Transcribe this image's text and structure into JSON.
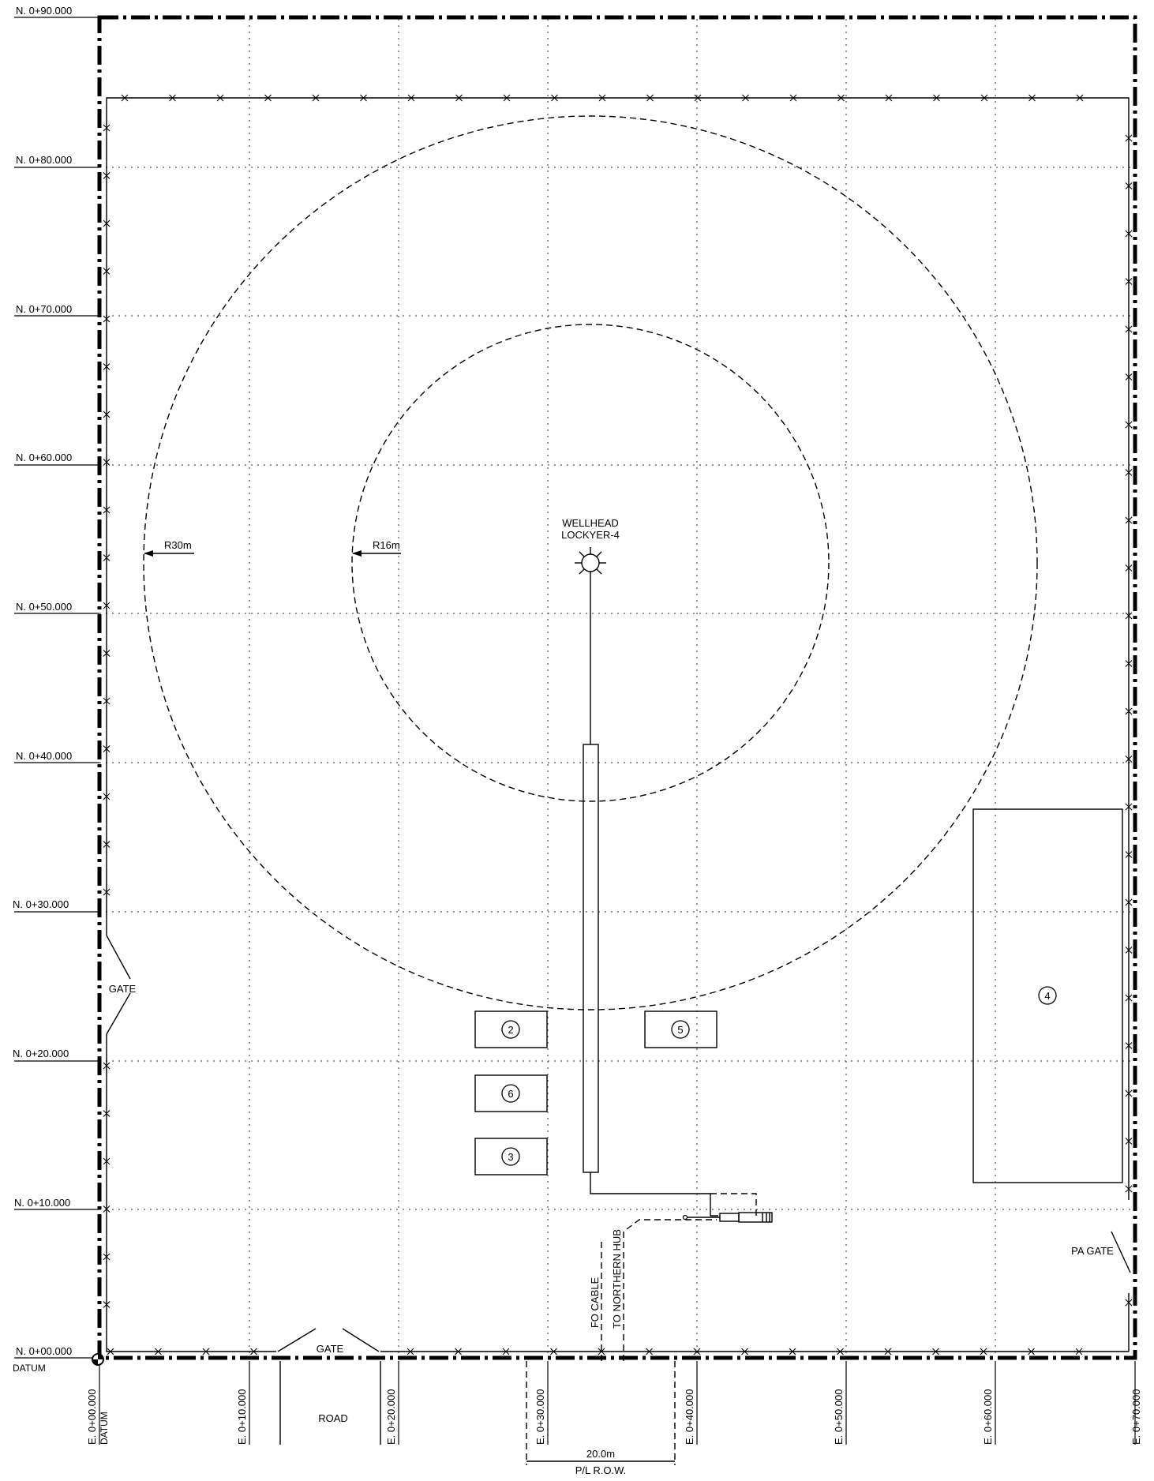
{
  "northings": [
    "N. 0+00.000",
    "N. 0+10.000",
    "N. 0+20.000",
    "N. 0+30.000",
    "N. 0+40.000",
    "N. 0+50.000",
    "N. 0+60.000",
    "N. 0+70.000",
    "N. 0+80.000",
    "N. 0+90.000"
  ],
  "eastings": [
    "E. 0+00.000",
    "E. 0+10.000",
    "E. 0+20.000",
    "E. 0+30.000",
    "E. 0+40.000",
    "E. 0+50.000",
    "E. 0+60.000",
    "E. 0+70.000"
  ],
  "datum_label": "DATUM",
  "datum_easting_sub": "DATUM",
  "wellhead": {
    "line1": "WELLHEAD",
    "line2": "LOCKYER-4"
  },
  "radius_outer": "R30m",
  "radius_inner": "R16m",
  "gate_west": "GATE",
  "gate_south": "GATE",
  "pa_gate": "PA GATE",
  "road": "ROAD",
  "fo_cable": "FO CABLE",
  "to_northern_hub": "TO NORTHERN HUB",
  "row_width": "20.0m",
  "row_label": "P/L R.O.W.",
  "equipment": [
    "2",
    "5",
    "6",
    "3",
    "4"
  ]
}
